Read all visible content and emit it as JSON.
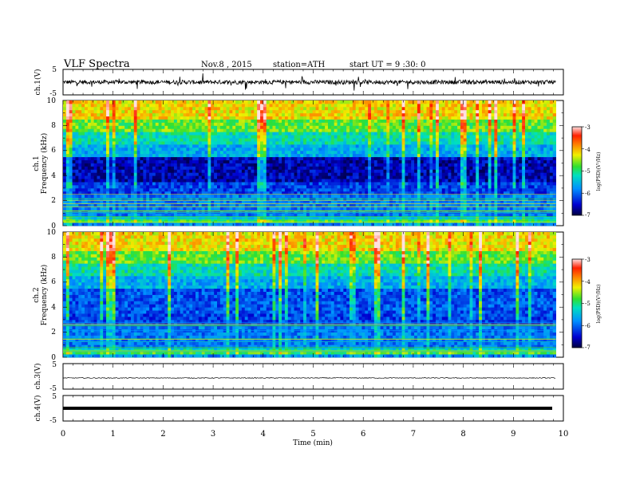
{
  "header": {
    "title": "VLF Spectra",
    "date": "Nov.8 , 2015",
    "station": "station=ATH",
    "start": "start UT = 9 :30: 0"
  },
  "chart_data": [
    {
      "type": "line",
      "panel": "ch1-waveform",
      "ylabel": "ch.1(V)",
      "ylim": [
        -5,
        5
      ],
      "yticks": [
        "5",
        "-5"
      ],
      "xlim": [
        0,
        10
      ],
      "baseline_level": 0,
      "amplitude_approx": 1,
      "color": "#000000"
    },
    {
      "type": "heatmap",
      "panel": "ch1-spectrogram",
      "ylabel_line1": "ch.1",
      "ylabel_line2": "Frequency (kHz)",
      "ylim": [
        0,
        10
      ],
      "yticks": [
        "0",
        "2",
        "4",
        "6",
        "8",
        "10"
      ],
      "xlim": [
        0,
        9.85
      ],
      "colorbar": {
        "label": "log(PSD)(V²/Hz)",
        "ticks": [
          "-3",
          "-4",
          "-5",
          "-6",
          "-7"
        ],
        "range": [
          -7,
          -3
        ]
      }
    },
    {
      "type": "heatmap",
      "panel": "ch2-spectrogram",
      "ylabel_line1": "ch.2",
      "ylabel_line2": "Frequency (kHz)",
      "ylim": [
        0,
        10
      ],
      "yticks": [
        "0",
        "2",
        "4",
        "6",
        "8",
        "10"
      ],
      "xlim": [
        0,
        9.85
      ],
      "colorbar": {
        "label": "log(PSD)(V²/Hz)",
        "ticks": [
          "-3",
          "-4",
          "-5",
          "-6",
          "-7"
        ],
        "range": [
          -7,
          -3
        ]
      }
    },
    {
      "type": "line",
      "panel": "ch3-waveform",
      "ylabel": "ch.3(V)",
      "ylim": [
        -5,
        5
      ],
      "yticks": [
        "5",
        "-5"
      ],
      "baseline_level": 0,
      "amplitude_approx": 0.1
    },
    {
      "type": "line",
      "panel": "ch4-waveform",
      "ylabel": "ch.4(V)",
      "ylim": [
        -5,
        5
      ],
      "yticks": [
        "5",
        "-5"
      ],
      "baseline_level": 0,
      "amplitude_approx": 0.05
    }
  ],
  "xaxis": {
    "label": "Time (min)",
    "ticks": [
      "0",
      "1",
      "2",
      "3",
      "4",
      "5",
      "6",
      "7",
      "8",
      "9",
      "10"
    ],
    "range": [
      0,
      10
    ]
  }
}
